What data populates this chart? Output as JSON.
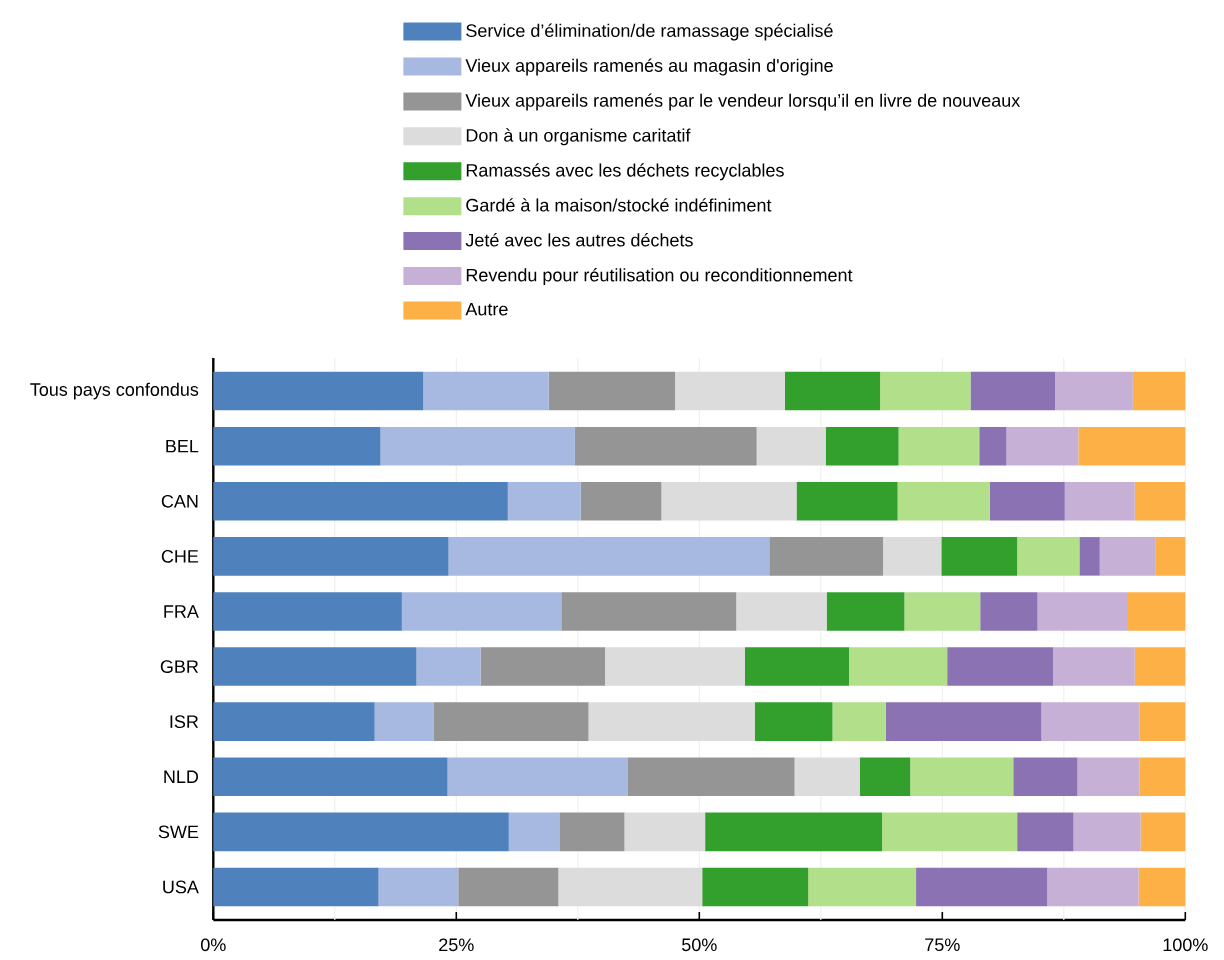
{
  "chart_data": {
    "type": "bar",
    "orientation": "horizontal",
    "stacked": true,
    "categories": [
      "Tous pays confondus",
      "BEL",
      "CAN",
      "CHE",
      "FRA",
      "GBR",
      "ISR",
      "NLD",
      "SWE",
      "USA"
    ],
    "series": [
      {
        "name": "Service d’élimination/de ramassage spécialisé",
        "color": "#4f81bd",
        "values": [
          21.6,
          17.2,
          30.3,
          24.2,
          19.4,
          20.9,
          16.6,
          24.1,
          30.4,
          17.0
        ]
      },
      {
        "name": "Vieux appareils ramenés au magasin d'origine",
        "color": "#a7b8e1",
        "values": [
          12.9,
          20.0,
          7.5,
          33.0,
          16.4,
          6.6,
          6.1,
          18.5,
          5.2,
          8.2
        ]
      },
      {
        "name": "Vieux appareils ramenés par le vendeur lorsqu’il en livre de nouveaux",
        "color": "#959595",
        "values": [
          13.0,
          18.7,
          8.3,
          11.7,
          18.0,
          12.8,
          15.9,
          17.2,
          6.7,
          10.3
        ]
      },
      {
        "name": "Don à un organisme caritatif",
        "color": "#dcdcdc",
        "values": [
          11.3,
          7.1,
          13.9,
          6.0,
          9.3,
          14.4,
          17.1,
          6.7,
          8.3,
          14.8
        ]
      },
      {
        "name": "Ramassés avec les déchets recyclables",
        "color": "#339f2c",
        "values": [
          9.8,
          7.5,
          10.4,
          7.8,
          8.0,
          10.7,
          8.0,
          5.2,
          18.2,
          10.9
        ]
      },
      {
        "name": "Gardé à la maison/stocké indéfiniment",
        "color": "#b2df8a",
        "values": [
          9.3,
          8.3,
          9.5,
          6.4,
          7.8,
          10.1,
          5.5,
          10.6,
          13.9,
          11.1
        ]
      },
      {
        "name": "Jeté avec les autres déchets",
        "color": "#8b73b3",
        "values": [
          8.7,
          2.8,
          7.7,
          2.1,
          5.9,
          10.9,
          16.0,
          6.6,
          5.8,
          13.5
        ]
      },
      {
        "name": "Revendu pour réutilisation ou reconditionnement",
        "color": "#c7b0d5",
        "values": [
          8.0,
          7.4,
          7.2,
          5.7,
          9.2,
          8.4,
          10.1,
          6.4,
          6.9,
          9.4
        ]
      },
      {
        "name": "Autre",
        "color": "#fdb046",
        "values": [
          5.4,
          11.0,
          5.2,
          3.1,
          6.0,
          5.2,
          4.7,
          4.7,
          4.6,
          4.8
        ]
      }
    ],
    "xlim": [
      0,
      100
    ],
    "xticks": [
      {
        "value": 0,
        "label": "0%"
      },
      {
        "value": 12.5,
        "label": null
      },
      {
        "value": 25,
        "label": "25%"
      },
      {
        "value": 37.5,
        "label": null
      },
      {
        "value": 50,
        "label": "50%"
      },
      {
        "value": 62.5,
        "label": null
      },
      {
        "value": 75,
        "label": "75%"
      },
      {
        "value": 87.5,
        "label": null
      },
      {
        "value": 100,
        "label": "100%"
      }
    ],
    "grid": "x",
    "legend": "top"
  }
}
